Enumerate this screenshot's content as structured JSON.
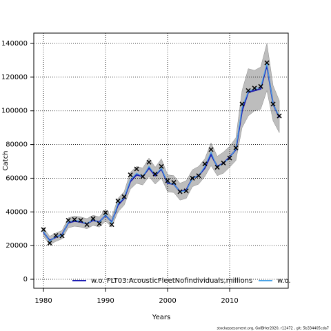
{
  "chart_data": {
    "type": "line",
    "x_label": "Years",
    "y_label": "Catch",
    "footnote": "stockassessment.org, GolBHer2020, r12472 , git: 5b334405cda7",
    "x": [
      1980,
      1981,
      1982,
      1983,
      1984,
      1985,
      1986,
      1987,
      1988,
      1989,
      1990,
      1991,
      1992,
      1993,
      1994,
      1995,
      1996,
      1997,
      1998,
      1999,
      2000,
      2001,
      2002,
      2003,
      2004,
      2005,
      2006,
      2007,
      2008,
      2009,
      2010,
      2011,
      2012,
      2013,
      2014,
      2015,
      2016,
      2017,
      2018
    ],
    "series": [
      {
        "name": "w.o. FLT03:AcousticFleetNofindividuals,millions",
        "color": "#1f1fb4",
        "values": [
          28000,
          23000,
          25000,
          26500,
          33500,
          34500,
          34000,
          33000,
          35000,
          34000,
          38000,
          34000,
          44000,
          48000,
          58000,
          62000,
          61000,
          66000,
          61500,
          65500,
          57000,
          56500,
          52000,
          53000,
          60000,
          61500,
          66000,
          74000,
          67000,
          69000,
          72500,
          77000,
          100000,
          111000,
          112000,
          113000,
          127000,
          104000,
          96000
        ],
        "lower": [
          25500,
          20500,
          22500,
          24000,
          30500,
          31500,
          31000,
          30000,
          32000,
          31000,
          34500,
          31000,
          40000,
          44000,
          53500,
          57000,
          56000,
          61000,
          56500,
          60000,
          52000,
          51500,
          47000,
          48000,
          55000,
          56500,
          61000,
          67500,
          61500,
          63000,
          66500,
          70500,
          90000,
          97000,
          100000,
          101000,
          112000,
          94000,
          87000
        ],
        "upper": [
          30500,
          25500,
          27500,
          29000,
          36500,
          37500,
          37000,
          36000,
          38000,
          37000,
          41500,
          37000,
          48000,
          52000,
          63500,
          67000,
          66000,
          72000,
          66500,
          71500,
          62000,
          61500,
          57000,
          58500,
          65000,
          67000,
          71500,
          81000,
          73000,
          75500,
          79000,
          84000,
          112000,
          125000,
          124000,
          126000,
          140000,
          115000,
          106000
        ]
      },
      {
        "name": "w.o.",
        "color": "#4aa3e6",
        "values": [
          28500,
          22500,
          25500,
          26000,
          34000,
          35000,
          34500,
          33000,
          35500,
          33500,
          38500,
          33500,
          45000,
          48500,
          59000,
          63000,
          61000,
          67000,
          62000,
          66000,
          57500,
          56500,
          52000,
          52500,
          60000,
          61500,
          67000,
          75500,
          66500,
          69000,
          72000,
          77500,
          102000,
          111500,
          113000,
          114000,
          128000,
          104000,
          96500
        ]
      },
      {
        "color": "#000000",
        "values": [
          29500,
          21500,
          26000,
          25800,
          35000,
          35500,
          35000,
          32500,
          36000,
          33000,
          39500,
          32500,
          46500,
          49000,
          62000,
          65500,
          61000,
          69500,
          62500,
          67000,
          58500,
          57500,
          52000,
          52500,
          60000,
          61500,
          68500,
          77000,
          66500,
          69000,
          72000,
          78000,
          104000,
          112000,
          113500,
          114500,
          128500,
          104000,
          97000
        ]
      }
    ],
    "band_color": "#bdbdbd",
    "xlim": [
      1978.44,
      2019.44
    ],
    "xticks": [
      1980,
      1990,
      2000,
      2010
    ],
    "ylim": [
      -5320,
      146140
    ],
    "yticks": [
      0,
      20000,
      40000,
      60000,
      80000,
      100000,
      120000,
      140000
    ],
    "grid": true
  }
}
